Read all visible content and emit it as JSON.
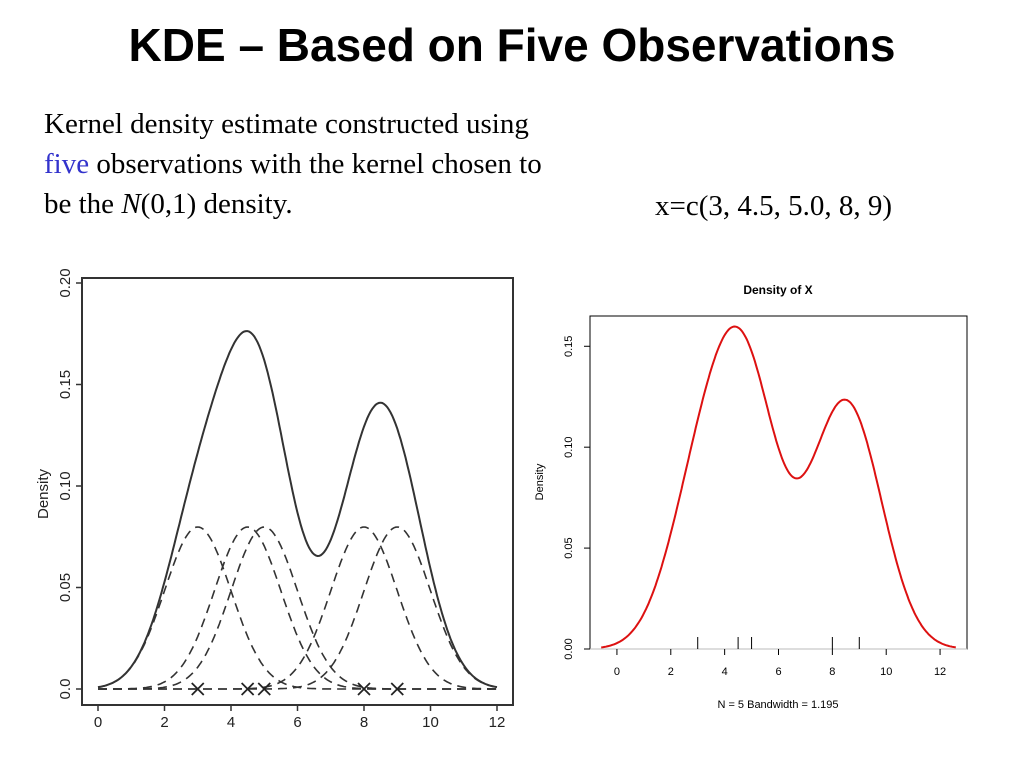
{
  "slide": {
    "title": "KDE – Based on Five Observations",
    "desc_part1": "Kernel density estimate constructed using ",
    "desc_highlight": "five",
    "desc_part2": " observations with the kernel chosen to be the ",
    "desc_italic": "N",
    "desc_part3": "(0,1) density.",
    "x_vector": "x=c(3, 4.5, 5.0, 8, 9)",
    "colors": {
      "highlight": "#3333cc",
      "density_line": "#dd1111"
    }
  },
  "chart_data": [
    {
      "type": "line",
      "title": "",
      "xlabel": "",
      "ylabel": "Density",
      "xlim": [
        0,
        12
      ],
      "ylim": [
        0,
        0.2
      ],
      "x_ticks": [
        "0",
        "2",
        "4",
        "6",
        "8",
        "10",
        "12"
      ],
      "y_ticks": [
        "0.0",
        "0.05",
        "0.10",
        "0.15",
        "0.20"
      ],
      "observations": [
        3,
        4.5,
        5.0,
        8,
        9
      ],
      "kernel": "N(0,1)",
      "bandwidth": 1,
      "series": [
        {
          "style": "solid",
          "kind": "kde"
        },
        {
          "style": "dashed",
          "kind": "kernel",
          "center": 3
        },
        {
          "style": "dashed",
          "kind": "kernel",
          "center": 4.5
        },
        {
          "style": "dashed",
          "kind": "kernel",
          "center": 5.0
        },
        {
          "style": "dashed",
          "kind": "kernel",
          "center": 8
        },
        {
          "style": "dashed",
          "kind": "kernel",
          "center": 9
        }
      ],
      "marker": "x-icon",
      "grid": false
    },
    {
      "type": "line",
      "title": "Density of X",
      "xlabel": "N = 5   Bandwidth = 1.195",
      "ylabel": "Density",
      "xlim": [
        -1,
        13
      ],
      "ylim": [
        0,
        0.165
      ],
      "x_ticks": [
        "0",
        "2",
        "4",
        "6",
        "8",
        "10",
        "12"
      ],
      "y_ticks": [
        "0.00",
        "0.05",
        "0.10",
        "0.15"
      ],
      "observations": [
        3,
        4.5,
        5.0,
        8,
        9
      ],
      "bandwidth": 1.195,
      "line_color": "#dd1111",
      "rug": true,
      "grid": false
    }
  ]
}
